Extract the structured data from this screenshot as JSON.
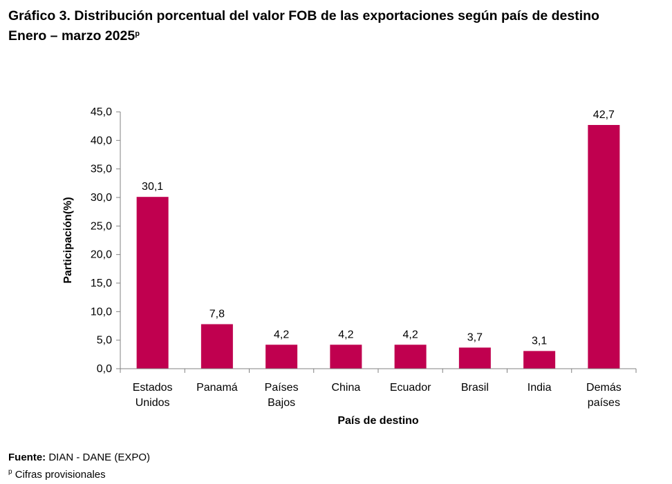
{
  "header": {
    "title_line1": "Gráfico 3. Distribución porcentual del valor FOB de las exportaciones según país de destino",
    "title_line2": "Enero – marzo 2025",
    "title_sup": "p"
  },
  "chart_data": {
    "type": "bar",
    "title": "Distribución porcentual del valor FOB de las exportaciones según país de destino",
    "categories": [
      [
        "Estados",
        "Unidos"
      ],
      [
        "Panamá"
      ],
      [
        "Países",
        "Bajos"
      ],
      [
        "China"
      ],
      [
        "Ecuador"
      ],
      [
        "Brasil"
      ],
      [
        "India"
      ],
      [
        "Demás",
        "países"
      ]
    ],
    "values": [
      30.1,
      7.8,
      4.2,
      4.2,
      4.2,
      3.7,
      3.1,
      42.7
    ],
    "value_labels": [
      "30,1",
      "7,8",
      "4,2",
      "4,2",
      "4,2",
      "3,7",
      "3,1",
      "42,7"
    ],
    "xlabel": "País de destino",
    "ylabel": "Participación(%)",
    "ylim": [
      0,
      45
    ],
    "yticks": [
      "0,0",
      "5,0",
      "10,0",
      "15,0",
      "20,0",
      "25,0",
      "30,0",
      "35,0",
      "40,0",
      "45,0"
    ],
    "bar_color": "#C0004F",
    "grid": false
  },
  "footer": {
    "source_label": "Fuente:",
    "source_text": "DIAN - DANE (EXPO)",
    "note_sup": "p",
    "note_text": "Cifras provisionales"
  }
}
